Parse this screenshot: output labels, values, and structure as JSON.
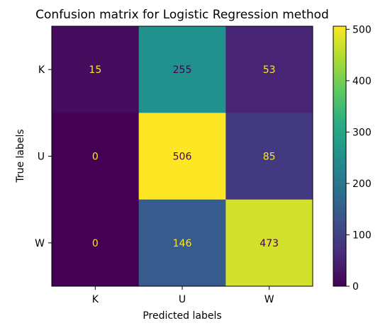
{
  "chart_data": {
    "type": "heatmap",
    "title": "Confusion matrix for Logistic Regression method",
    "xlabel": "Predicted labels",
    "ylabel": "True labels",
    "x_categories": [
      "K",
      "U",
      "W"
    ],
    "y_categories": [
      "K",
      "U",
      "W"
    ],
    "values": [
      [
        15,
        255,
        53
      ],
      [
        0,
        506,
        85
      ],
      [
        0,
        146,
        473
      ]
    ],
    "colorbar": {
      "min": 0,
      "max": 506,
      "ticks": [
        0,
        100,
        200,
        300,
        400,
        500
      ]
    },
    "colormap": "viridis"
  }
}
